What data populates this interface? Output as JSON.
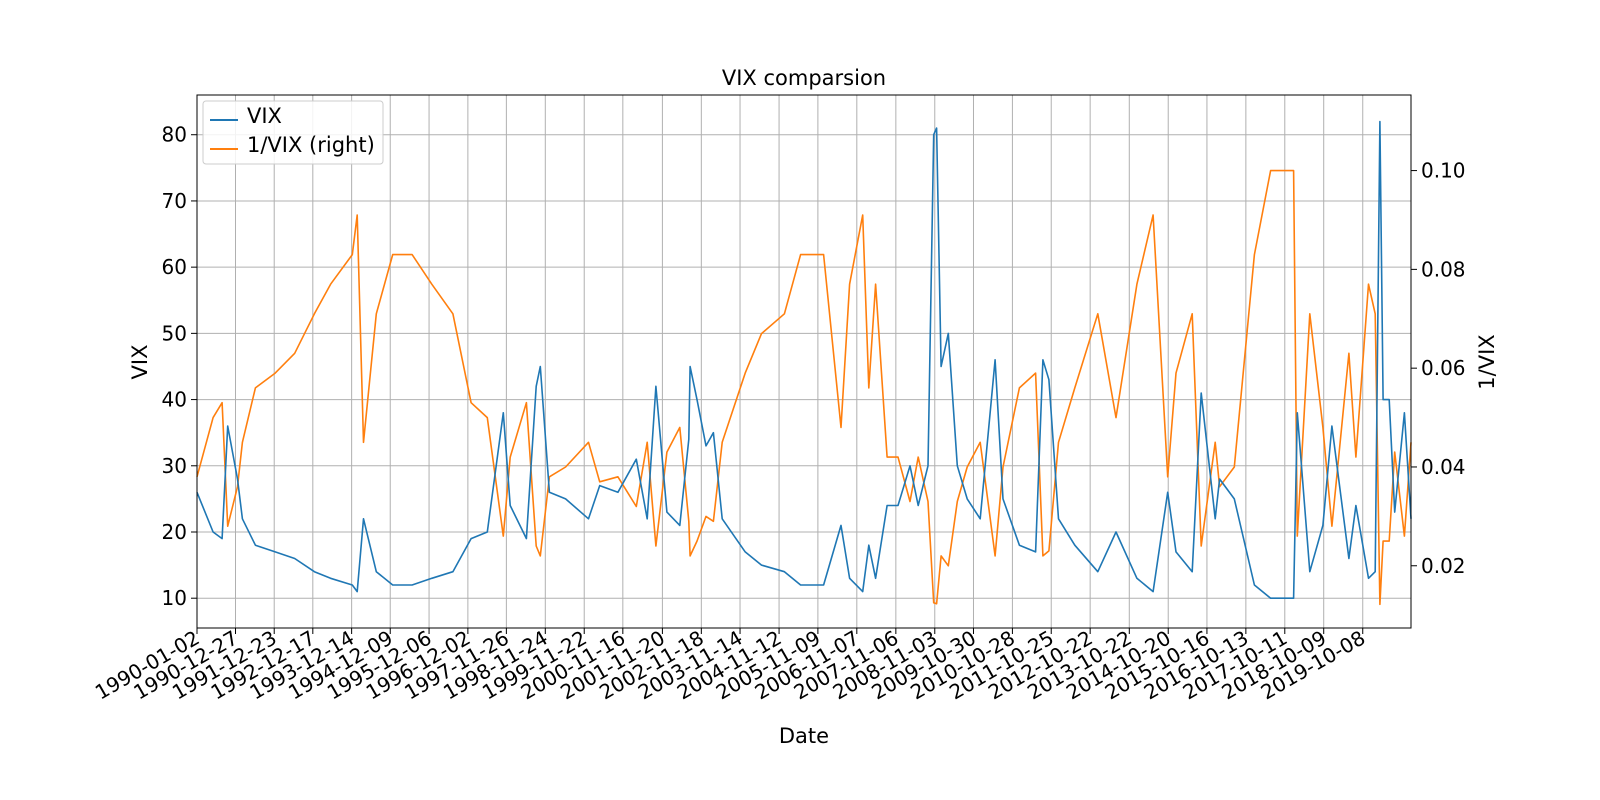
{
  "chart_data": {
    "type": "line",
    "title": "VIX comparsion",
    "xlabel": "Date",
    "ylabel": "VIX",
    "y2label": "1/VIX",
    "grid": true,
    "legend_position": "top-left",
    "x_tick_labels": [
      "1990-01-02",
      "1990-12-27",
      "1991-12-23",
      "1992-12-17",
      "1993-12-14",
      "1994-12-09",
      "1995-12-06",
      "1996-12-02",
      "1997-11-26",
      "1998-11-24",
      "1999-11-22",
      "2000-11-16",
      "2001-11-20",
      "2002-11-18",
      "2003-11-14",
      "2004-11-12",
      "2005-11-09",
      "2006-11-07",
      "2007-11-06",
      "2008-11-03",
      "2009-10-30",
      "2010-10-28",
      "2011-10-25",
      "2012-10-22",
      "2013-10-22",
      "2014-10-20",
      "2015-10-16",
      "2016-10-13",
      "2017-10-11",
      "2018-10-09",
      "2019-10-08"
    ],
    "xlim": [
      "1990-01-02",
      "2020-12-31"
    ],
    "ylim": [
      5.5,
      86
    ],
    "y2lim": [
      0.0074,
      0.1153
    ],
    "yticks": [
      "10",
      "20",
      "30",
      "40",
      "50",
      "60",
      "70",
      "80"
    ],
    "y2ticks": [
      "0.02",
      "0.04",
      "0.06",
      "0.08",
      "0.10"
    ],
    "series": [
      {
        "name": "VIX",
        "axis": "left",
        "color": "#1f77b4",
        "x": [
          "1990-01-02",
          "1990-06-01",
          "1990-08-24",
          "1990-10-15",
          "1991-01-15",
          "1991-03-01",
          "1991-07-01",
          "1992-01-01",
          "1992-07-01",
          "1993-01-01",
          "1993-06-01",
          "1993-12-20",
          "1994-02-04",
          "1994-04-04",
          "1994-08-01",
          "1995-01-01",
          "1995-07-01",
          "1996-01-01",
          "1996-07-15",
          "1997-01-01",
          "1997-06-01",
          "1997-10-28",
          "1998-01-01",
          "1998-06-01",
          "1998-08-31",
          "1998-10-08",
          "1999-01-01",
          "1999-06-01",
          "2000-01-01",
          "2000-04-14",
          "2000-10-01",
          "2001-03-22",
          "2001-07-01",
          "2001-09-20",
          "2002-01-01",
          "2002-05-01",
          "2002-07-24",
          "2002-08-05",
          "2002-10-09",
          "2003-01-01",
          "2003-03-11",
          "2003-06-01",
          "2004-01-01",
          "2004-06-01",
          "2005-01-01",
          "2005-06-01",
          "2006-01-01",
          "2006-06-13",
          "2006-09-01",
          "2007-01-01",
          "2007-02-27",
          "2007-05-01",
          "2007-08-16",
          "2007-11-26",
          "2008-03-17",
          "2008-06-01",
          "2008-09-01",
          "2008-10-24",
          "2008-11-20",
          "2009-01-01",
          "2009-03-09",
          "2009-06-01",
          "2009-09-01",
          "2010-01-01",
          "2010-05-20",
          "2010-08-01",
          "2011-01-01",
          "2011-06-01",
          "2011-08-08",
          "2011-10-03",
          "2012-01-01",
          "2012-06-01",
          "2013-01-01",
          "2013-06-20",
          "2014-01-01",
          "2014-06-01",
          "2014-10-15",
          "2015-01-01",
          "2015-06-01",
          "2015-08-24",
          "2016-01-01",
          "2016-02-11",
          "2016-06-27",
          "2017-01-01",
          "2017-06-01",
          "2018-01-01",
          "2018-02-05",
          "2018-06-01",
          "2018-10-01",
          "2018-12-24",
          "2019-06-01",
          "2019-08-05",
          "2019-12-01",
          "2020-02-01",
          "2020-03-16",
          "2020-04-15",
          "2020-06-11",
          "2020-08-01",
          "2020-10-30",
          "2020-12-31"
        ],
        "y": [
          26,
          20,
          19,
          36,
          28,
          22,
          18,
          17,
          16,
          14,
          13,
          12,
          11,
          22,
          14,
          12,
          12,
          13,
          14,
          19,
          20,
          38,
          24,
          19,
          42,
          45,
          26,
          25,
          22,
          27,
          26,
          31,
          22,
          42,
          23,
          21,
          34,
          45,
          40,
          33,
          35,
          22,
          17,
          15,
          14,
          12,
          12,
          21,
          13,
          11,
          18,
          13,
          24,
          24,
          30,
          24,
          30,
          80,
          81,
          45,
          50,
          30,
          25,
          22,
          46,
          25,
          18,
          17,
          46,
          43,
          22,
          18,
          14,
          20,
          13,
          11,
          26,
          17,
          14,
          41,
          22,
          28,
          25,
          12,
          10,
          10,
          38,
          14,
          21,
          36,
          16,
          24,
          13,
          14,
          82,
          40,
          40,
          23,
          38,
          22
        ]
      },
      {
        "name": "1/VIX (right)",
        "axis": "right",
        "color": "#ff7f0e",
        "x": [
          "1990-01-02",
          "1990-06-01",
          "1990-08-24",
          "1990-10-15",
          "1991-01-15",
          "1991-03-01",
          "1991-07-01",
          "1992-01-01",
          "1992-07-01",
          "1993-01-01",
          "1993-06-01",
          "1993-12-20",
          "1994-02-04",
          "1994-04-04",
          "1994-08-01",
          "1995-01-01",
          "1995-07-01",
          "1996-01-01",
          "1996-07-15",
          "1997-01-01",
          "1997-06-01",
          "1997-10-28",
          "1998-01-01",
          "1998-06-01",
          "1998-08-31",
          "1998-10-08",
          "1999-01-01",
          "1999-06-01",
          "2000-01-01",
          "2000-04-14",
          "2000-10-01",
          "2001-03-22",
          "2001-07-01",
          "2001-09-20",
          "2002-01-01",
          "2002-05-01",
          "2002-07-24",
          "2002-08-05",
          "2002-10-09",
          "2003-01-01",
          "2003-03-11",
          "2003-06-01",
          "2004-01-01",
          "2004-06-01",
          "2005-01-01",
          "2005-06-01",
          "2006-01-01",
          "2006-06-13",
          "2006-09-01",
          "2007-01-01",
          "2007-02-27",
          "2007-05-01",
          "2007-08-16",
          "2007-11-26",
          "2008-03-17",
          "2008-06-01",
          "2008-09-01",
          "2008-10-24",
          "2008-11-20",
          "2009-01-01",
          "2009-03-09",
          "2009-06-01",
          "2009-09-01",
          "2010-01-01",
          "2010-05-20",
          "2010-08-01",
          "2011-01-01",
          "2011-06-01",
          "2011-08-08",
          "2011-10-03",
          "2012-01-01",
          "2012-06-01",
          "2013-01-01",
          "2013-06-20",
          "2014-01-01",
          "2014-06-01",
          "2014-10-15",
          "2015-01-01",
          "2015-06-01",
          "2015-08-24",
          "2016-01-01",
          "2016-02-11",
          "2016-06-27",
          "2017-01-01",
          "2017-06-01",
          "2018-01-01",
          "2018-02-05",
          "2018-06-01",
          "2018-10-01",
          "2018-12-24",
          "2019-06-01",
          "2019-08-05",
          "2019-12-01",
          "2020-02-01",
          "2020-03-16",
          "2020-04-15",
          "2020-06-11",
          "2020-08-01",
          "2020-10-30",
          "2020-12-31"
        ],
        "y": [
          0.038,
          0.05,
          0.053,
          0.028,
          0.036,
          0.045,
          0.056,
          0.059,
          0.063,
          0.071,
          0.077,
          0.083,
          0.091,
          0.045,
          0.071,
          0.083,
          0.083,
          0.077,
          0.071,
          0.053,
          0.05,
          0.026,
          0.042,
          0.053,
          0.024,
          0.022,
          0.038,
          0.04,
          0.045,
          0.037,
          0.038,
          0.032,
          0.045,
          0.024,
          0.043,
          0.048,
          0.029,
          0.022,
          0.025,
          0.03,
          0.029,
          0.045,
          0.059,
          0.067,
          0.071,
          0.083,
          0.083,
          0.048,
          0.077,
          0.091,
          0.056,
          0.077,
          0.042,
          0.042,
          0.033,
          0.042,
          0.033,
          0.0125,
          0.0123,
          0.022,
          0.02,
          0.033,
          0.04,
          0.045,
          0.022,
          0.04,
          0.056,
          0.059,
          0.022,
          0.023,
          0.045,
          0.056,
          0.071,
          0.05,
          0.077,
          0.091,
          0.038,
          0.059,
          0.071,
          0.024,
          0.045,
          0.036,
          0.04,
          0.083,
          0.1,
          0.1,
          0.026,
          0.071,
          0.048,
          0.028,
          0.063,
          0.042,
          0.077,
          0.071,
          0.0122,
          0.025,
          0.025,
          0.043,
          0.026,
          0.045
        ]
      }
    ]
  }
}
